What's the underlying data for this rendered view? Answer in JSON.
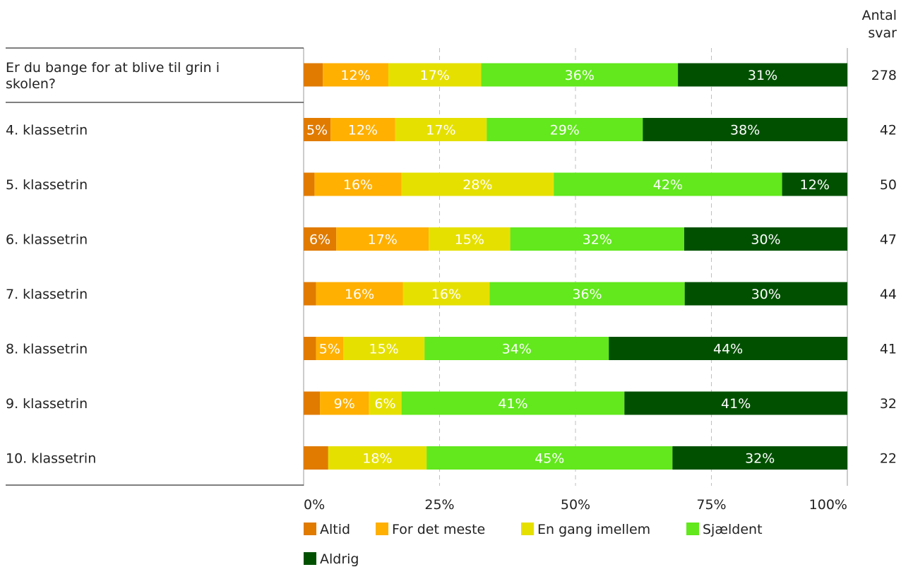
{
  "chart_data": {
    "type": "bar",
    "orientation": "horizontal",
    "stacked": "percent",
    "count_header": [
      "Antal",
      "svar"
    ],
    "categories": [
      "Er du bange for at blive til grin i skolen?",
      "4. klassetrin",
      "5. klassetrin",
      "6. klassetrin",
      "7. klassetrin",
      "8. klassetrin",
      "9. klassetrin",
      "10. klassetrin"
    ],
    "counts": [
      "278",
      "42",
      "50",
      "47",
      "44",
      "41",
      "32",
      "22"
    ],
    "series": [
      {
        "name": "Altid",
        "color": "#e07b00",
        "values": [
          3.5,
          5,
          2,
          6,
          2.3,
          2.3,
          3,
          4.5
        ]
      },
      {
        "name": "For det meste",
        "color": "#ffb000",
        "values": [
          12,
          12,
          16,
          17,
          16,
          5,
          9,
          0
        ]
      },
      {
        "name": "En gang imellem",
        "color": "#e6e000",
        "values": [
          17,
          17,
          28,
          15,
          16,
          15,
          6,
          18
        ]
      },
      {
        "name": "Sjældent",
        "color": "#62e81c",
        "values": [
          36,
          29,
          42,
          32,
          36,
          34,
          41,
          45
        ]
      },
      {
        "name": "Aldrig",
        "color": "#005000",
        "values": [
          31,
          38,
          12,
          30,
          30,
          44,
          41,
          32
        ]
      }
    ],
    "data_labels": [
      [
        "",
        "12%",
        "17%",
        "36%",
        "31%"
      ],
      [
        "5%",
        "12%",
        "17%",
        "29%",
        "38%"
      ],
      [
        "",
        "16%",
        "28%",
        "42%",
        "12%"
      ],
      [
        "6%",
        "17%",
        "15%",
        "32%",
        "30%"
      ],
      [
        "",
        "16%",
        "16%",
        "36%",
        "30%"
      ],
      [
        "",
        "5%",
        "15%",
        "34%",
        "44%"
      ],
      [
        "",
        "9%",
        "6%",
        "41%",
        "41%"
      ],
      [
        "",
        "",
        "18%",
        "45%",
        "32%"
      ]
    ],
    "xlim": [
      0,
      100
    ],
    "x_ticks": [
      "0%",
      "25%",
      "50%",
      "75%",
      "100%"
    ],
    "grid": true,
    "legend_position": "bottom"
  }
}
